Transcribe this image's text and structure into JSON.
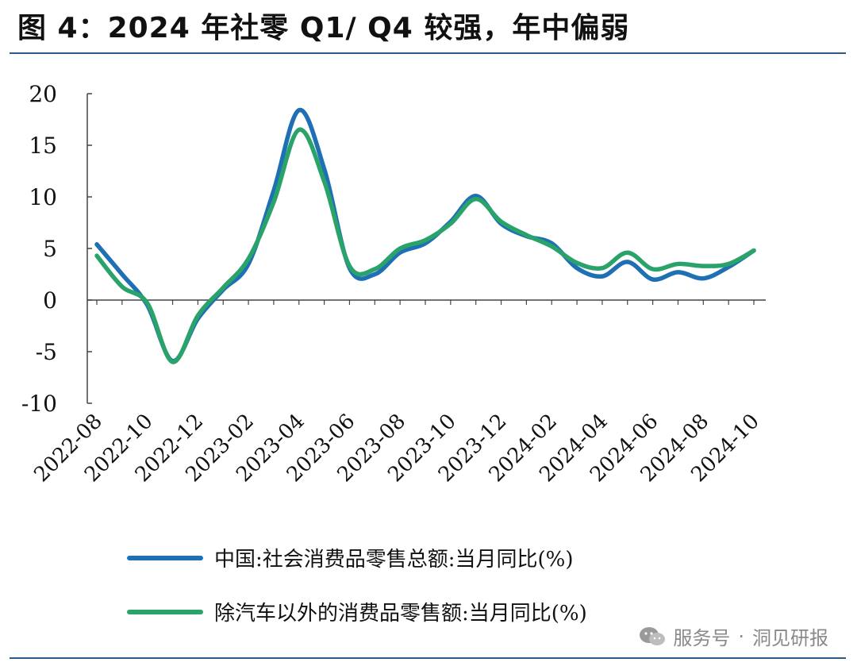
{
  "header": {
    "title": "图 4：2024 年社零 Q1/ Q4 较强，年中偏弱"
  },
  "colors": {
    "series_total": "#1f6fb5",
    "series_ex_auto": "#2aa36b",
    "axis": "#444444",
    "rule": "#2c5a8a"
  },
  "legend": {
    "items": [
      {
        "label": "中国:社会消费品零售总额:当月同比(%)"
      },
      {
        "label": "除汽车以外的消费品零售额:当月同比(%)"
      }
    ]
  },
  "watermark": {
    "icon": "wechat-icon",
    "left": "服务号",
    "sep": "·",
    "right": "洞见研报"
  },
  "chart_data": {
    "type": "line",
    "title": "2024 年社零 Q1/ Q4 较强，年中偏弱",
    "xlabel": "",
    "ylabel": "",
    "ylim": [
      -10,
      20
    ],
    "yticks": [
      "20",
      "15",
      "10",
      "5",
      "0",
      "-5",
      "-10"
    ],
    "categories": [
      "2022-08",
      "2022-09",
      "2022-10",
      "2022-11",
      "2022-12",
      "2023-01",
      "2023-02",
      "2023-03",
      "2023-04",
      "2023-05",
      "2023-06",
      "2023-07",
      "2023-08",
      "2023-09",
      "2023-10",
      "2023-11",
      "2023-12",
      "2024-01",
      "2024-02",
      "2024-03",
      "2024-04",
      "2024-05",
      "2024-06",
      "2024-07",
      "2024-08",
      "2024-09",
      "2024-10"
    ],
    "tick_labels": [
      "2022-08",
      "2022-10",
      "2022-12",
      "2023-02",
      "2023-04",
      "2023-06",
      "2023-08",
      "2023-10",
      "2023-12",
      "2024-02",
      "2024-04",
      "2024-06",
      "2024-08",
      "2024-10"
    ],
    "series": [
      {
        "name": "中国:社会消费品零售总额:当月同比(%)",
        "values": [
          5.4,
          2.5,
          -0.5,
          -5.9,
          -1.8,
          1.0,
          3.5,
          10.6,
          18.4,
          12.7,
          3.1,
          2.5,
          4.6,
          5.5,
          7.6,
          10.1,
          7.4,
          6.2,
          5.5,
          3.1,
          2.3,
          3.7,
          2.0,
          2.7,
          2.1,
          3.2,
          4.8
        ]
      },
      {
        "name": "除汽车以外的消费品零售额:当月同比(%)",
        "values": [
          4.3,
          1.3,
          -0.3,
          -6.0,
          -1.5,
          1.2,
          4.0,
          9.5,
          16.5,
          11.5,
          3.3,
          3.0,
          5.0,
          5.8,
          7.4,
          9.8,
          7.6,
          6.3,
          5.2,
          3.6,
          3.1,
          4.6,
          3.0,
          3.5,
          3.3,
          3.5,
          4.8
        ]
      }
    ]
  }
}
